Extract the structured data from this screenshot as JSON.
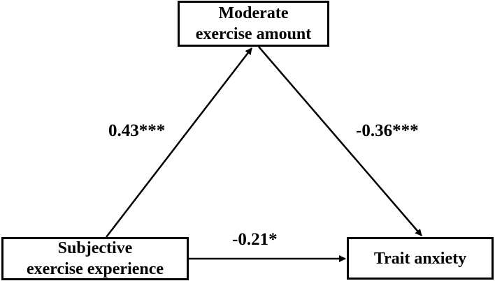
{
  "nodes": {
    "mediator": {
      "line1": "Moderate",
      "line2": "exercise amount"
    },
    "predictor": {
      "line1": "Subjective",
      "line2": "exercise experience"
    },
    "outcome": {
      "label": "Trait anxiety"
    }
  },
  "paths": {
    "a": {
      "from": "predictor",
      "to": "mediator",
      "coefficient": "0.43***"
    },
    "b": {
      "from": "mediator",
      "to": "outcome",
      "coefficient": "-0.36***"
    },
    "c": {
      "from": "predictor",
      "to": "outcome",
      "coefficient": "-0.21*"
    }
  }
}
